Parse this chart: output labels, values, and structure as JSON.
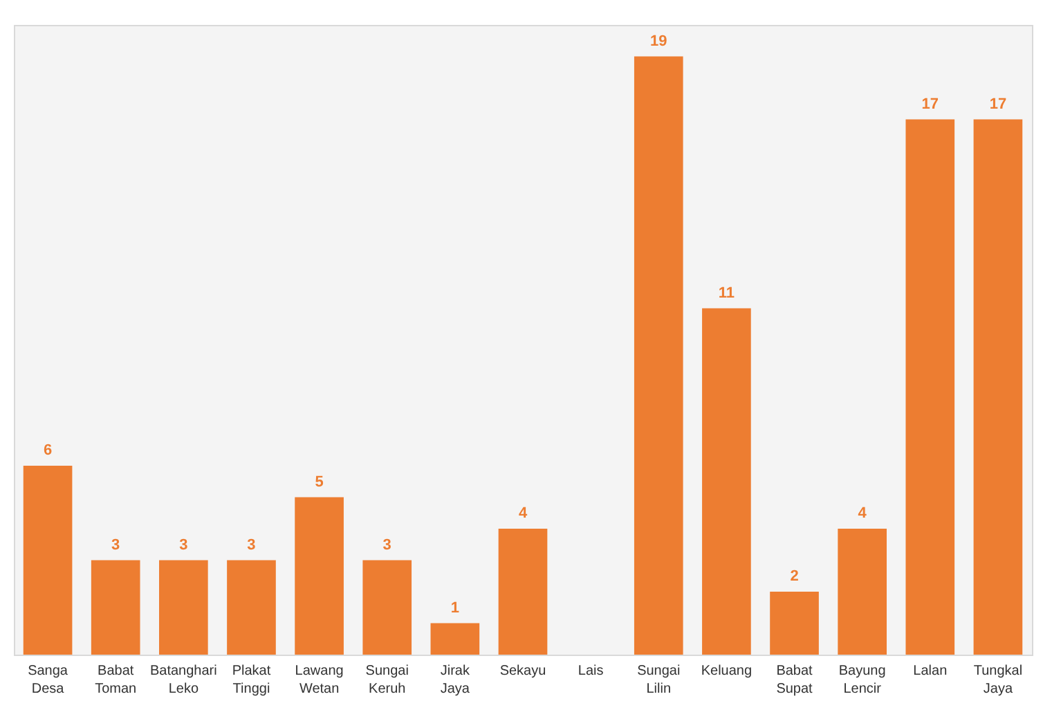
{
  "chart_data": {
    "type": "bar",
    "categories": [
      "Sanga Desa",
      "Babat Toman",
      "Batanghari Leko",
      "Plakat Tinggi",
      "Lawang Wetan",
      "Sungai Keruh",
      "Jirak Jaya",
      "Sekayu",
      "Lais",
      "Sungai Lilin",
      "Keluang",
      "Babat Supat",
      "Bayung Lencir",
      "Lalan",
      "Tungkal Jaya"
    ],
    "values": [
      6,
      3,
      3,
      3,
      5,
      3,
      1,
      4,
      null,
      19,
      11,
      2,
      4,
      17,
      17
    ],
    "color": "#ed7d31",
    "data_labels": true,
    "tick_labels": "x"
  }
}
